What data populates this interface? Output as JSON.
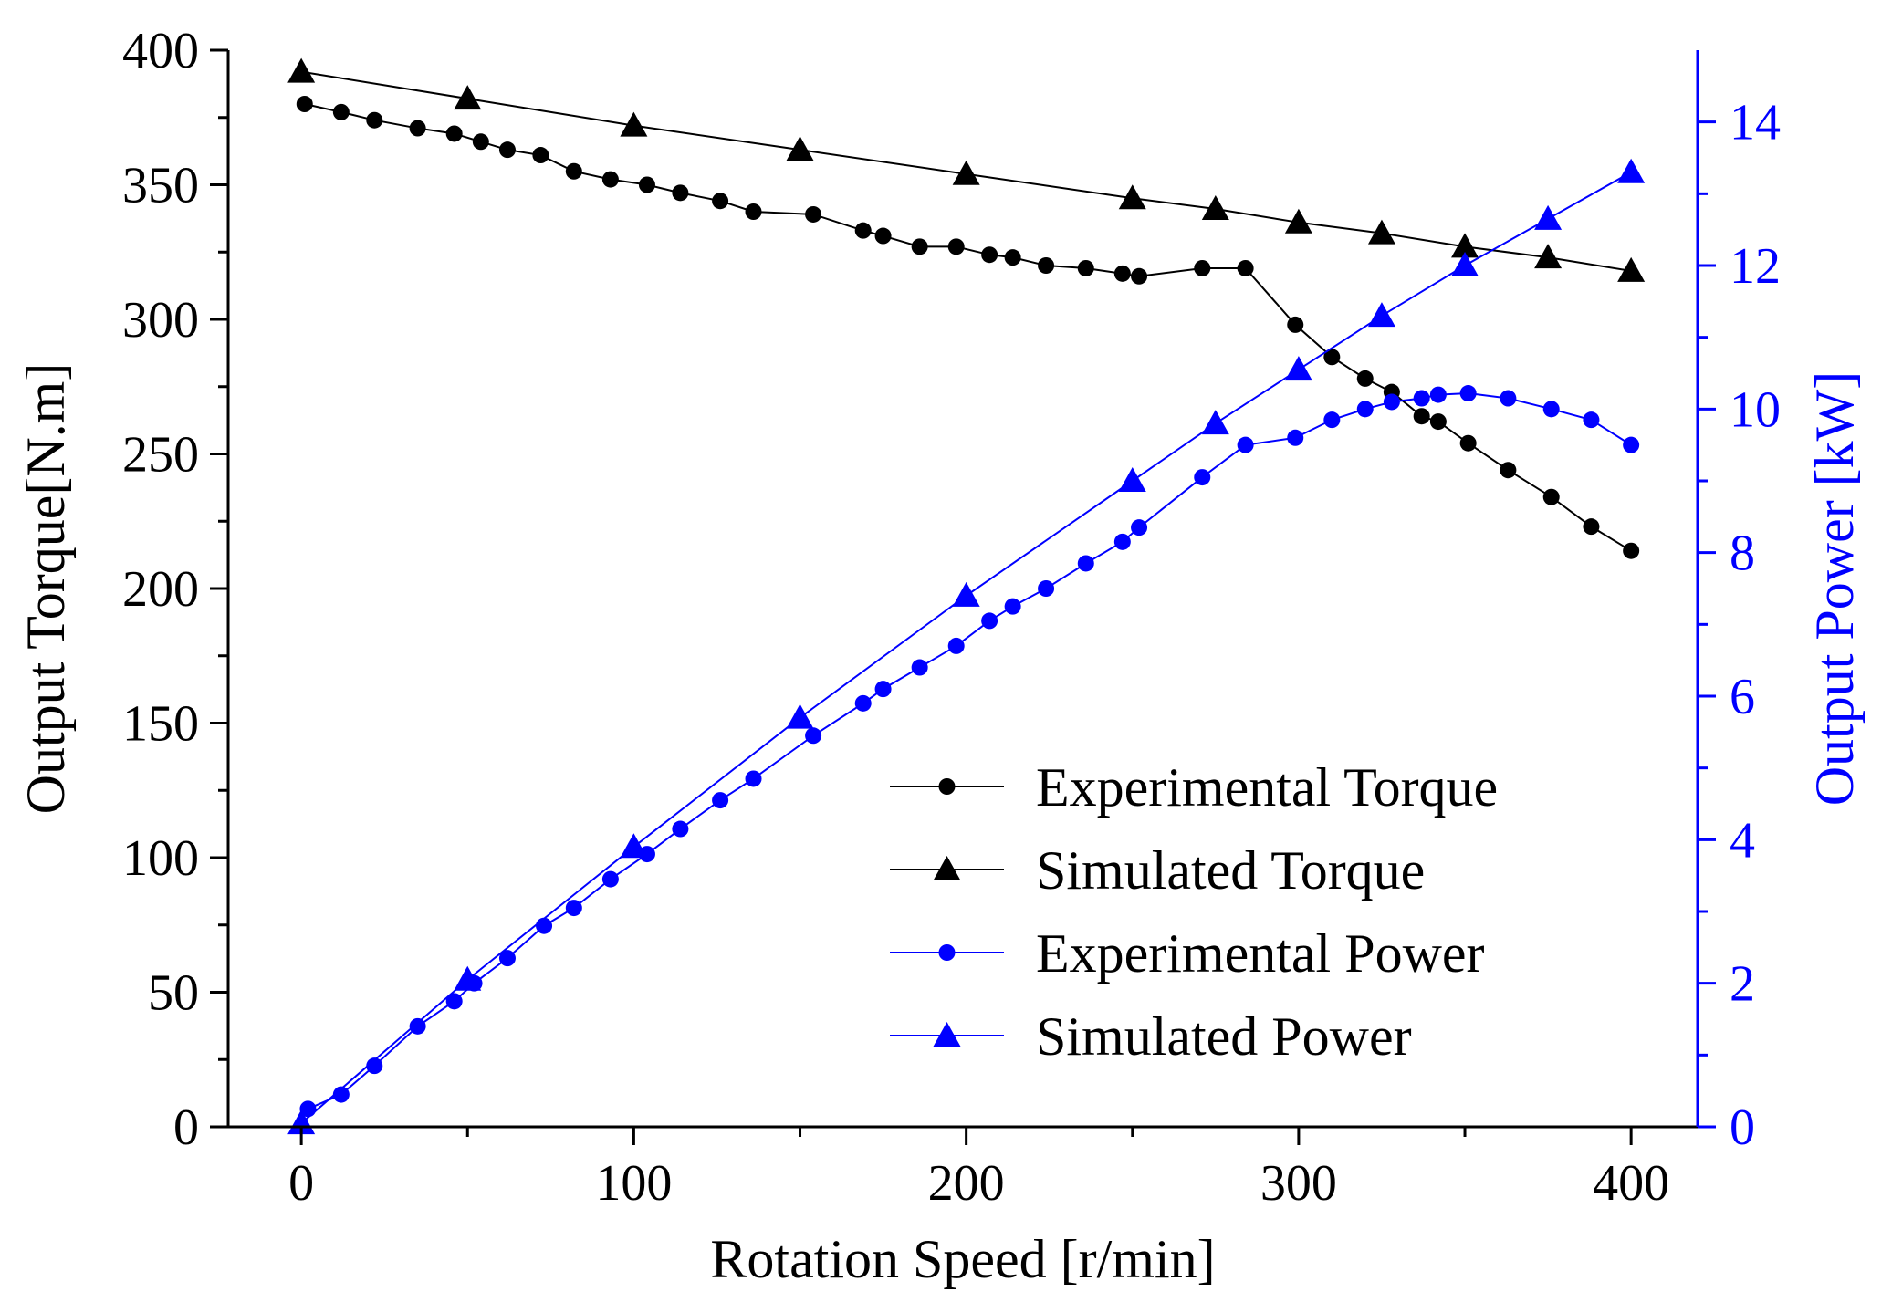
{
  "chart_data": {
    "type": "line",
    "title": "",
    "xlabel": "Rotation Speed [r/min]",
    "ylabel_left": "Output Torque[N.m]",
    "ylabel_right": "Output Power [kW]",
    "xlim": [
      -22,
      420
    ],
    "ylim_left": [
      0,
      400
    ],
    "ylim_right": [
      0,
      15
    ],
    "x_ticks": [
      0,
      100,
      200,
      300,
      400
    ],
    "x_tick_labels": [
      "0",
      "100",
      "200",
      "300",
      "400"
    ],
    "y_left_ticks": [
      0,
      50,
      100,
      150,
      200,
      250,
      300,
      350,
      400
    ],
    "y_left_tick_labels": [
      "0",
      "50",
      "100",
      "150",
      "200",
      "250",
      "300",
      "350",
      "400"
    ],
    "y_right_ticks": [
      0,
      2,
      4,
      6,
      8,
      10,
      12,
      14
    ],
    "y_right_tick_labels": [
      "0",
      "2",
      "4",
      "6",
      "8",
      "10",
      "12",
      "14"
    ],
    "grid": false,
    "legend_position": "lower-right",
    "colors": {
      "torque": "#000000",
      "power": "#0000ff"
    },
    "series": [
      {
        "name": "Experimental Torque",
        "axis": "left",
        "color": "#000000",
        "marker": "circle",
        "x": [
          1,
          12,
          22,
          35,
          46,
          54,
          62,
          72,
          82,
          93,
          104,
          114,
          126,
          136,
          154,
          169,
          175,
          186,
          197,
          207,
          214,
          224,
          236,
          247,
          252,
          271,
          284,
          299,
          310,
          320,
          328,
          337,
          342,
          351,
          363,
          376,
          388,
          400
        ],
        "values": [
          380,
          377,
          374,
          371,
          369,
          366,
          363,
          361,
          355,
          352,
          350,
          347,
          344,
          340,
          339,
          333,
          331,
          327,
          327,
          324,
          323,
          320,
          319,
          317,
          316,
          319,
          319,
          298,
          286,
          278,
          273,
          264,
          262,
          254,
          244,
          234,
          223,
          214
        ]
      },
      {
        "name": "Simulated Torque",
        "axis": "left",
        "color": "#000000",
        "marker": "triangle",
        "x": [
          0,
          50,
          100,
          150,
          200,
          250,
          275,
          300,
          325,
          350,
          375,
          400
        ],
        "values": [
          392,
          382,
          372,
          363,
          354,
          345,
          341,
          336,
          332,
          327,
          323,
          318
        ]
      },
      {
        "name": "Experimental Power",
        "axis": "right",
        "color": "#0000ff",
        "marker": "circle",
        "x": [
          2,
          12,
          22,
          35,
          46,
          52,
          62,
          73,
          82,
          93,
          104,
          114,
          126,
          136,
          154,
          169,
          175,
          186,
          197,
          207,
          214,
          224,
          236,
          247,
          252,
          271,
          284,
          299,
          310,
          320,
          328,
          337,
          342,
          351,
          363,
          376,
          388,
          400
        ],
        "values": [
          0.25,
          0.45,
          0.85,
          1.4,
          1.75,
          2.0,
          2.35,
          2.8,
          3.05,
          3.45,
          3.8,
          4.15,
          4.55,
          4.85,
          5.45,
          5.9,
          6.1,
          6.4,
          6.7,
          7.05,
          7.25,
          7.5,
          7.85,
          8.15,
          8.35,
          9.05,
          9.5,
          9.6,
          9.85,
          10.0,
          10.1,
          10.15,
          10.2,
          10.22,
          10.15,
          10.0,
          9.85,
          9.5
        ]
      },
      {
        "name": "Simulated Power",
        "axis": "right",
        "color": "#0000ff",
        "marker": "triangle",
        "x": [
          0,
          50,
          100,
          150,
          200,
          250,
          275,
          300,
          325,
          350,
          375,
          400
        ],
        "values": [
          0.05,
          2.05,
          3.9,
          5.7,
          7.4,
          9.0,
          9.8,
          10.55,
          11.3,
          12.0,
          12.65,
          13.3
        ]
      }
    ],
    "legend": [
      "Experimental Torque",
      "Simulated Torque",
      "Experimental Power",
      "Simulated Power"
    ]
  }
}
